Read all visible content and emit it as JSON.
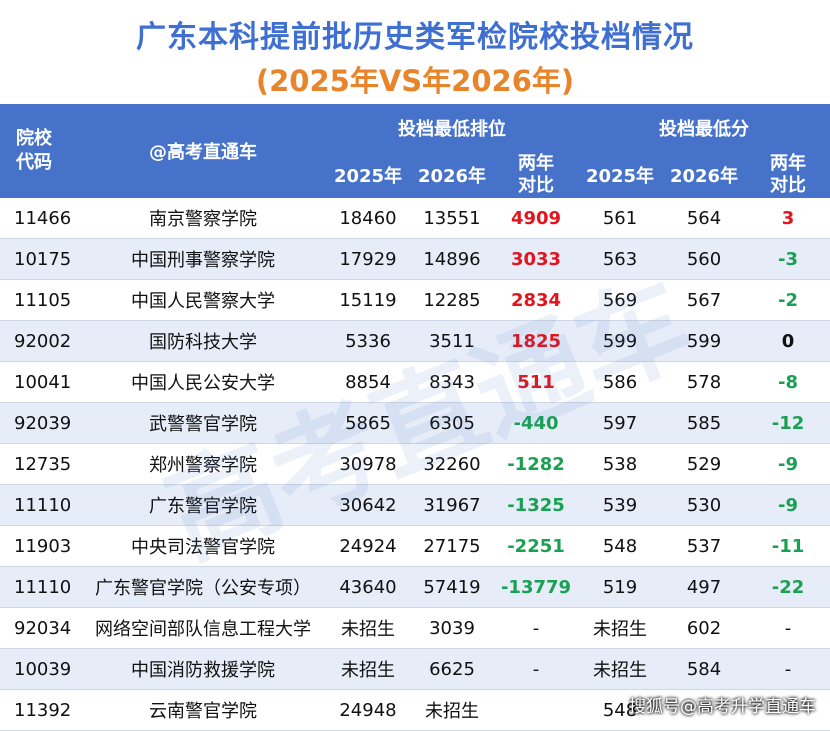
{
  "title": "广东本科提前批历史类军检院校投档情况",
  "subtitle": "(2025年VS年2026年)",
  "header": {
    "code_label": "院校\n代码",
    "name_label": "@高考直通车",
    "rank_group": "投档最低排位",
    "score_group": "投档最低分",
    "y2025": "2025年",
    "y2026": "2026年",
    "compare": "两年\n对比"
  },
  "rows": [
    {
      "code": "11466",
      "name": "南京警察学院",
      "r25": "18460",
      "r26": "13551",
      "rd": "4909",
      "rdc": "pos-red",
      "s25": "561",
      "s26": "564",
      "sd": "3",
      "sdc": "pos-red"
    },
    {
      "code": "10175",
      "name": "中国刑事警察学院",
      "r25": "17929",
      "r26": "14896",
      "rd": "3033",
      "rdc": "pos-red",
      "s25": "563",
      "s26": "560",
      "sd": "-3",
      "sdc": "neg-green"
    },
    {
      "code": "11105",
      "name": "中国人民警察大学",
      "r25": "15119",
      "r26": "12285",
      "rd": "2834",
      "rdc": "pos-red",
      "s25": "569",
      "s26": "567",
      "sd": "-2",
      "sdc": "neg-green"
    },
    {
      "code": "92002",
      "name": "国防科技大学",
      "r25": "5336",
      "r26": "3511",
      "rd": "1825",
      "rdc": "pos-red",
      "s25": "599",
      "s26": "599",
      "sd": "0",
      "sdc": "zero"
    },
    {
      "code": "10041",
      "name": "中国人民公安大学",
      "r25": "8854",
      "r26": "8343",
      "rd": "511",
      "rdc": "pos-red",
      "s25": "586",
      "s26": "578",
      "sd": "-8",
      "sdc": "neg-green"
    },
    {
      "code": "92039",
      "name": "武警警官学院",
      "r25": "5865",
      "r26": "6305",
      "rd": "-440",
      "rdc": "neg-green",
      "s25": "597",
      "s26": "585",
      "sd": "-12",
      "sdc": "neg-green"
    },
    {
      "code": "12735",
      "name": "郑州警察学院",
      "r25": "30978",
      "r26": "32260",
      "rd": "-1282",
      "rdc": "neg-green",
      "s25": "538",
      "s26": "529",
      "sd": "-9",
      "sdc": "neg-green"
    },
    {
      "code": "11110",
      "name": "广东警官学院",
      "r25": "30642",
      "r26": "31967",
      "rd": "-1325",
      "rdc": "neg-green",
      "s25": "539",
      "s26": "530",
      "sd": "-9",
      "sdc": "neg-green"
    },
    {
      "code": "11903",
      "name": "中央司法警官学院",
      "r25": "24924",
      "r26": "27175",
      "rd": "-2251",
      "rdc": "neg-green",
      "s25": "548",
      "s26": "537",
      "sd": "-11",
      "sdc": "neg-green"
    },
    {
      "code": "11110",
      "name": "广东警官学院（公安专项）",
      "r25": "43640",
      "r26": "57419",
      "rd": "-13779",
      "rdc": "neg-green",
      "s25": "519",
      "s26": "497",
      "sd": "-22",
      "sdc": "neg-green"
    },
    {
      "code": "92034",
      "name": "网络空间部队信息工程大学",
      "r25": "未招生",
      "r26": "3039",
      "rd": "-",
      "rdc": "",
      "s25": "未招生",
      "s26": "602",
      "sd": "-",
      "sdc": ""
    },
    {
      "code": "10039",
      "name": "中国消防救援学院",
      "r25": "未招生",
      "r26": "6625",
      "rd": "-",
      "rdc": "",
      "s25": "未招生",
      "s26": "584",
      "sd": "-",
      "sdc": ""
    },
    {
      "code": "11392",
      "name": "云南警官学院",
      "r25": "24948",
      "r26": "未招生",
      "rd": "",
      "rdc": "",
      "s25": "548",
      "s26": "",
      "sd": "",
      "sdc": ""
    }
  ],
  "watermark": "高考直通车",
  "footer": "搜狐号@高考升学直通车"
}
